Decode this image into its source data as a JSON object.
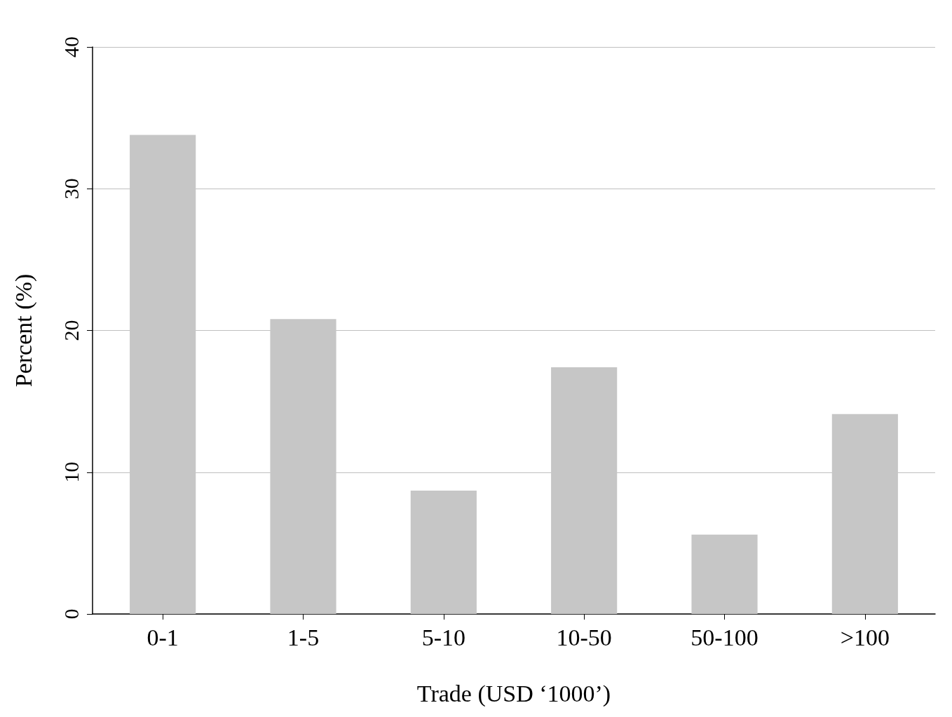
{
  "chart_data": {
    "type": "bar",
    "xlabel": "Trade (USD ‘1000’)",
    "ylabel": "Percent (%)",
    "categories": [
      "0-1",
      "1-5",
      "5-10",
      "10-50",
      "50-100",
      ">100"
    ],
    "values": [
      33.8,
      20.8,
      8.7,
      17.4,
      5.6,
      14.1
    ],
    "color": "#c6c6c6",
    "ylim": [
      0,
      40
    ],
    "yticks": [
      0,
      10,
      20,
      30,
      40
    ],
    "grid": "y"
  }
}
